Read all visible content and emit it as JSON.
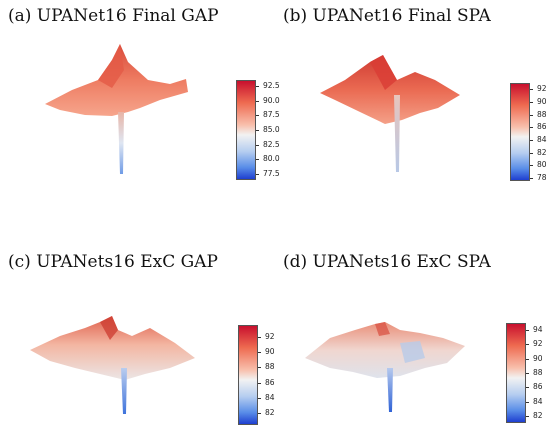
{
  "chart_data": [
    {
      "type": "surface3d",
      "title": "(a) UPANet16 Final GAP",
      "colorbar_ticks": [
        "92.5",
        "90.0",
        "87.5",
        "85.0",
        "82.5",
        "80.0",
        "77.5"
      ],
      "colorbar_range": [
        76.5,
        93.5
      ],
      "colormap": "coolwarm",
      "surface_level": 90.0,
      "spike_min": 77.5
    },
    {
      "type": "surface3d",
      "title": "(b) UPANet16 Final SPA",
      "colorbar_ticks": [
        "92",
        "90",
        "88",
        "86",
        "84",
        "82",
        "80",
        "78"
      ],
      "colorbar_range": [
        77.5,
        93
      ],
      "colormap": "coolwarm",
      "surface_level": 91.0,
      "spike_min": 80.0
    },
    {
      "type": "surface3d",
      "title": "(c) UPANets16 ExC GAP",
      "colorbar_ticks": [
        "92",
        "90",
        "88",
        "86",
        "84",
        "82"
      ],
      "colorbar_range": [
        80.5,
        93.5
      ],
      "colormap": "coolwarm",
      "surface_level": 88.5,
      "spike_min": 81.5
    },
    {
      "type": "surface3d",
      "title": "(d) UPANets16 ExC SPA",
      "colorbar_ticks": [
        "94",
        "92",
        "90",
        "88",
        "86",
        "84",
        "82"
      ],
      "colorbar_range": [
        81,
        95
      ],
      "colormap": "coolwarm",
      "surface_level": 88.0,
      "spike_min": 82.5
    }
  ]
}
